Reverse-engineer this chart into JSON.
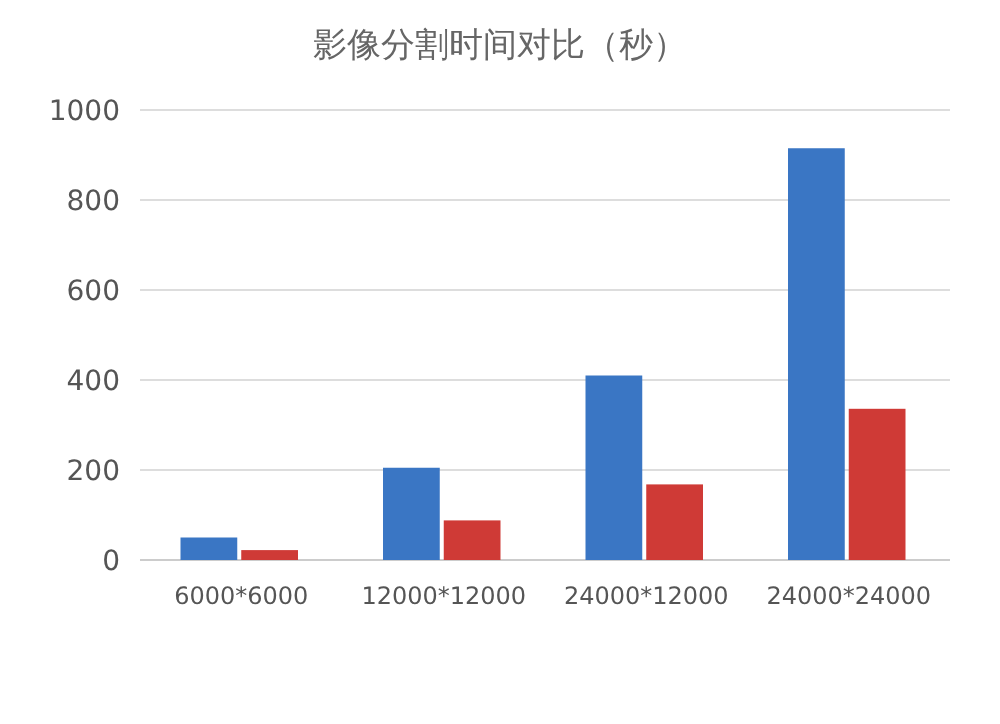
{
  "chart_data": {
    "type": "bar",
    "title": "影像分割时间对比（秒）",
    "categories": [
      "6000*6000",
      "12000*12000",
      "24000*12000",
      "24000*24000"
    ],
    "series": [
      {
        "color": "#3a76c4",
        "values": [
          50,
          205,
          410,
          915
        ]
      },
      {
        "color": "#cf3a36",
        "values": [
          22,
          88,
          168,
          336
        ]
      }
    ],
    "ylim": [
      0,
      1000
    ],
    "yticks": [
      0,
      200,
      400,
      600,
      800,
      1000
    ],
    "grid": "y"
  }
}
